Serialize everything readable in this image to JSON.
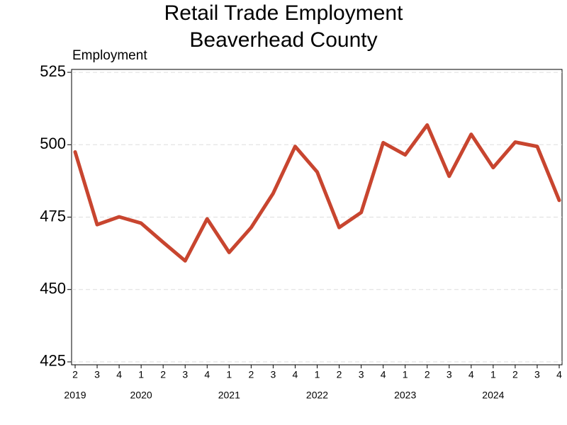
{
  "chart_data": {
    "type": "line",
    "title": "Retail Trade Employment",
    "subtitle": "Beaverhead County",
    "y_label": "Employment",
    "categories": [
      "2",
      "3",
      "4",
      "1",
      "2",
      "3",
      "4",
      "1",
      "2",
      "3",
      "4",
      "1",
      "2",
      "3",
      "4",
      "1",
      "2",
      "3",
      "4",
      "1",
      "2",
      "3",
      "4"
    ],
    "year_labels": [
      "2019",
      null,
      null,
      "2020",
      null,
      null,
      null,
      "2021",
      null,
      null,
      null,
      "2022",
      null,
      null,
      null,
      "2023",
      null,
      null,
      null,
      "2024",
      null,
      null,
      null
    ],
    "series": [
      {
        "name": "Employment",
        "color": "#c8452f",
        "values": [
          497.5,
          472.4,
          475.1,
          472.9,
          466.3,
          459.9,
          474.4,
          462.8,
          471.4,
          483.2,
          499.4,
          490.6,
          471.4,
          476.6,
          500.7,
          496.5,
          506.8,
          489.1,
          503.6,
          492.1,
          500.9,
          499.4,
          480.8
        ]
      }
    ],
    "ylim": [
      424,
      526
    ],
    "yticks": [
      425,
      450,
      475,
      500,
      525
    ],
    "grid": true
  }
}
